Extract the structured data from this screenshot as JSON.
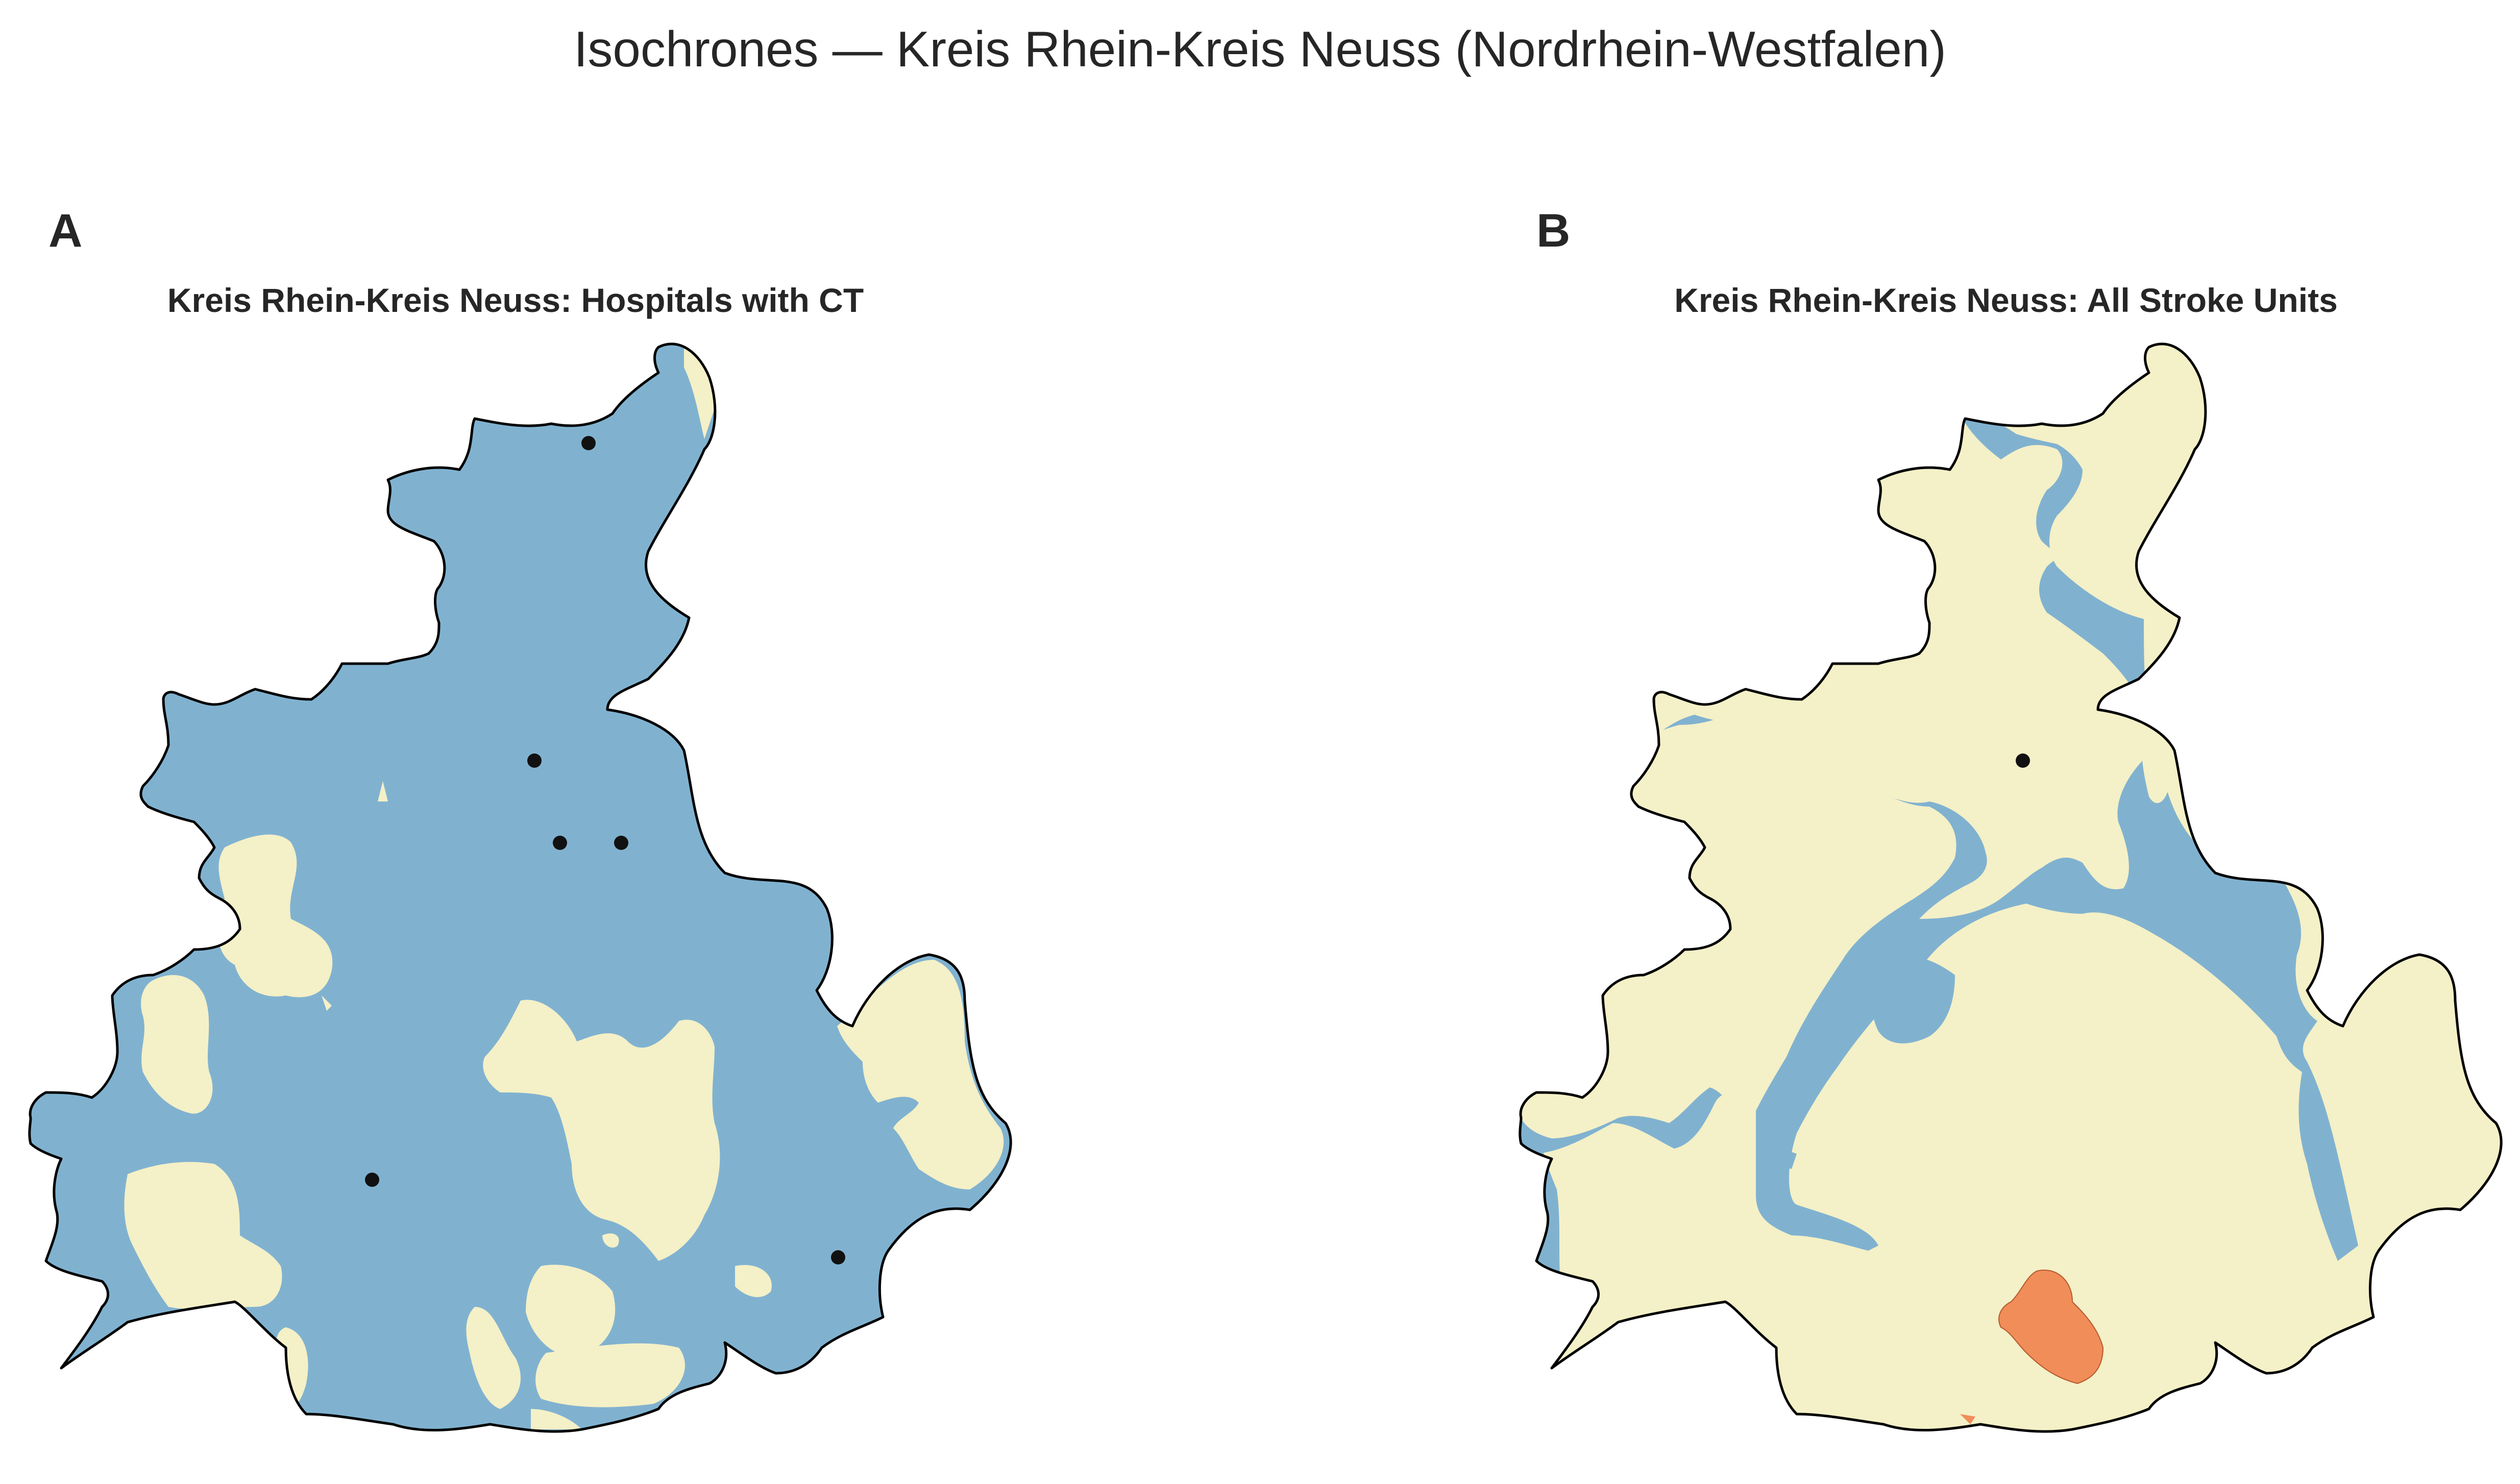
{
  "title": "Isochrones — Kreis Rhein-Kreis Neuss (Nordrhein-Westfalen)",
  "colors": {
    "zone_blue": "#80b2d0",
    "zone_yellow": "#f4f0c7",
    "zone_orange": "#f18d59",
    "outline": "#000000",
    "point": "#111111"
  },
  "panels": [
    {
      "letter": "A",
      "title": "Kreis Rhein-Kreis Neuss: Hospitals with CT",
      "point_count": 6
    },
    {
      "letter": "B",
      "title": "Kreis Rhein-Kreis Neuss: All Stroke Units",
      "point_count": 1
    }
  ]
}
